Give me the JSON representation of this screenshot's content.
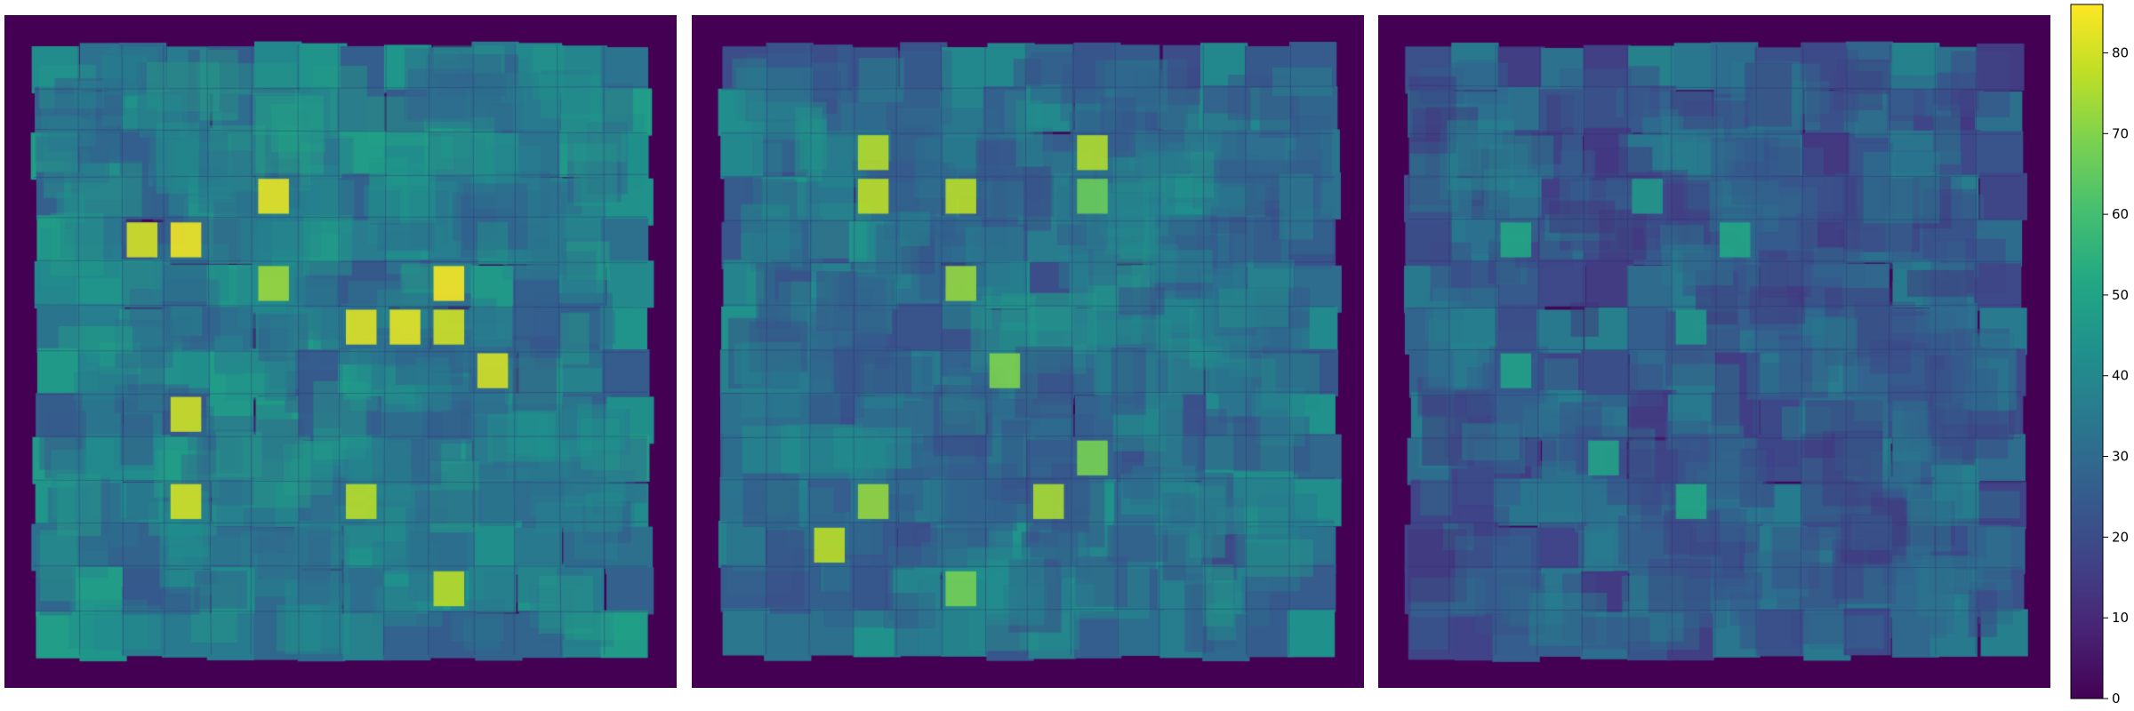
{
  "chart_data": {
    "type": "heatmap",
    "title": "",
    "panels": [
      {
        "name": "",
        "hotspot_strength": 1.0,
        "mean_level": 36,
        "hotspots": [
          [
            4,
            2
          ],
          [
            4,
            3
          ],
          [
            5,
            5
          ],
          [
            6,
            7
          ],
          [
            6,
            8
          ],
          [
            6,
            9
          ],
          [
            5,
            9
          ],
          [
            10,
            3
          ],
          [
            10,
            7
          ],
          [
            12,
            9
          ],
          [
            3,
            5
          ],
          [
            7,
            10
          ],
          [
            8,
            3
          ]
        ]
      },
      {
        "name": "",
        "hotspot_strength": 0.85,
        "mean_level": 32,
        "hotspots": [
          [
            2,
            3
          ],
          [
            2,
            8
          ],
          [
            3,
            3
          ],
          [
            3,
            5
          ],
          [
            3,
            8
          ],
          [
            5,
            5
          ],
          [
            7,
            6
          ],
          [
            9,
            8
          ],
          [
            10,
            3
          ],
          [
            10,
            7
          ],
          [
            11,
            2
          ],
          [
            12,
            5
          ]
        ]
      },
      {
        "name": "",
        "hotspot_strength": 0.45,
        "mean_level": 26,
        "hotspots": [
          [
            3,
            5
          ],
          [
            4,
            2
          ],
          [
            4,
            7
          ],
          [
            6,
            6
          ],
          [
            7,
            2
          ],
          [
            9,
            4
          ],
          [
            10,
            6
          ]
        ]
      }
    ],
    "grid_cells": 14,
    "colorbar": {
      "colormap": "viridis",
      "vmin": 0,
      "vmax": 86,
      "ticks": [
        0,
        10,
        20,
        30,
        40,
        50,
        60,
        70,
        80
      ],
      "tick_labels": [
        "0",
        "10",
        "20",
        "30",
        "40",
        "50",
        "60",
        "70",
        "80"
      ]
    }
  }
}
